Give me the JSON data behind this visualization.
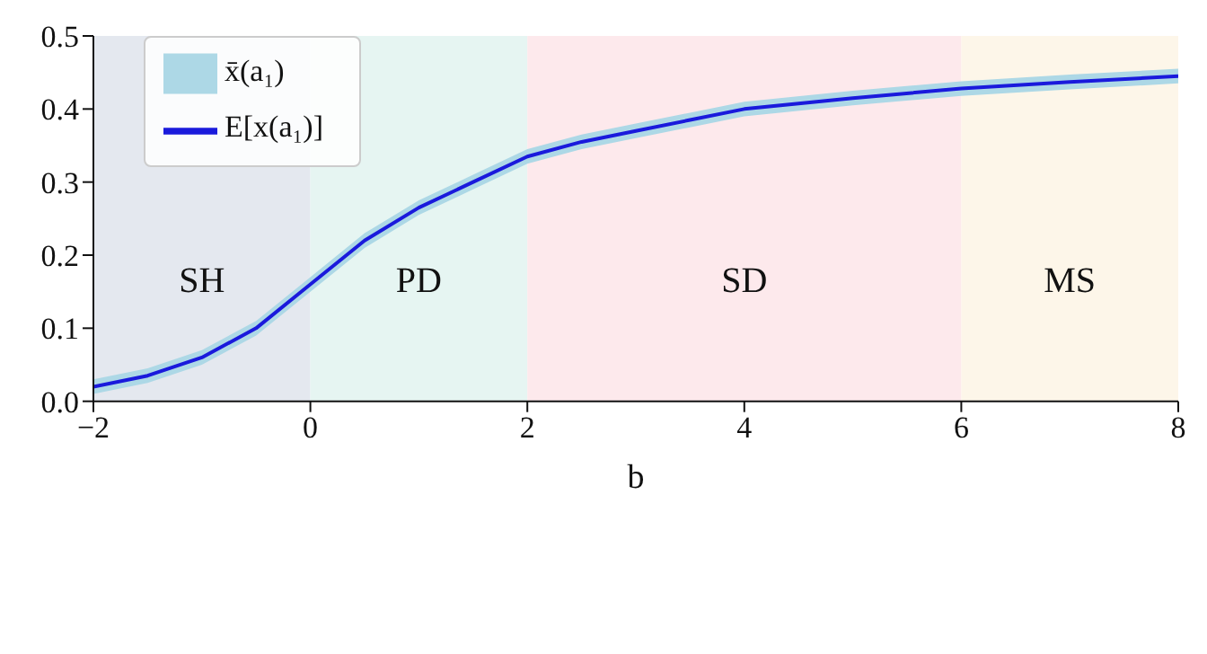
{
  "chart_data": {
    "type": "line",
    "xlabel": "b",
    "x": [
      -2,
      -1.5,
      -1,
      -0.5,
      0,
      0.5,
      1,
      1.5,
      2,
      2.5,
      3,
      3.5,
      4,
      5,
      6,
      7,
      8
    ],
    "series": [
      {
        "name": "x̄(a₁)",
        "type": "line",
        "color": "#add8e6",
        "values": [
          null,
          null,
          null,
          null,
          null,
          null,
          null,
          null,
          null,
          null,
          null,
          null,
          null,
          null,
          null,
          null,
          null
        ],
        "lower": [
          0.01,
          0.025,
          0.05,
          0.09,
          0.15,
          0.21,
          0.255,
          0.29,
          0.325,
          0.345,
          0.36,
          0.375,
          0.39,
          0.405,
          0.418,
          0.427,
          0.435
        ],
        "upper": [
          0.03,
          0.045,
          0.07,
          0.11,
          0.17,
          0.23,
          0.275,
          0.31,
          0.345,
          0.365,
          0.38,
          0.395,
          0.41,
          0.425,
          0.438,
          0.447,
          0.455
        ]
      },
      {
        "name": "E[x(a₁)]",
        "type": "line",
        "color": "#1a1adc",
        "values": [
          0.02,
          0.035,
          0.06,
          0.1,
          0.16,
          0.22,
          0.265,
          0.3,
          0.335,
          0.355,
          0.37,
          0.385,
          0.4,
          0.415,
          0.428,
          0.437,
          0.445
        ]
      }
    ],
    "bands": [
      {
        "axis": "x",
        "from": -2,
        "to": 0,
        "label": "SH",
        "color": "#e4e8ef"
      },
      {
        "axis": "x",
        "from": 0,
        "to": 2,
        "label": "PD",
        "color": "#e6f5f2"
      },
      {
        "axis": "x",
        "from": 2,
        "to": 6,
        "label": "SD",
        "color": "#fde9ec"
      },
      {
        "axis": "x",
        "from": 6,
        "to": 8,
        "label": "MS",
        "color": "#fdf6e9"
      }
    ],
    "xlim": [
      -2,
      8
    ],
    "xticks": [
      {
        "value": -2,
        "label": "−2"
      },
      0,
      2,
      4,
      6,
      8
    ],
    "ylim": [
      0,
      0.5
    ],
    "yticks": [
      {
        "value": 0,
        "label": "0.0"
      },
      0.1,
      0.2,
      0.3,
      0.4,
      0.5
    ],
    "grid": false,
    "legend": "top left",
    "marker": "none",
    "line_style": "solid"
  }
}
